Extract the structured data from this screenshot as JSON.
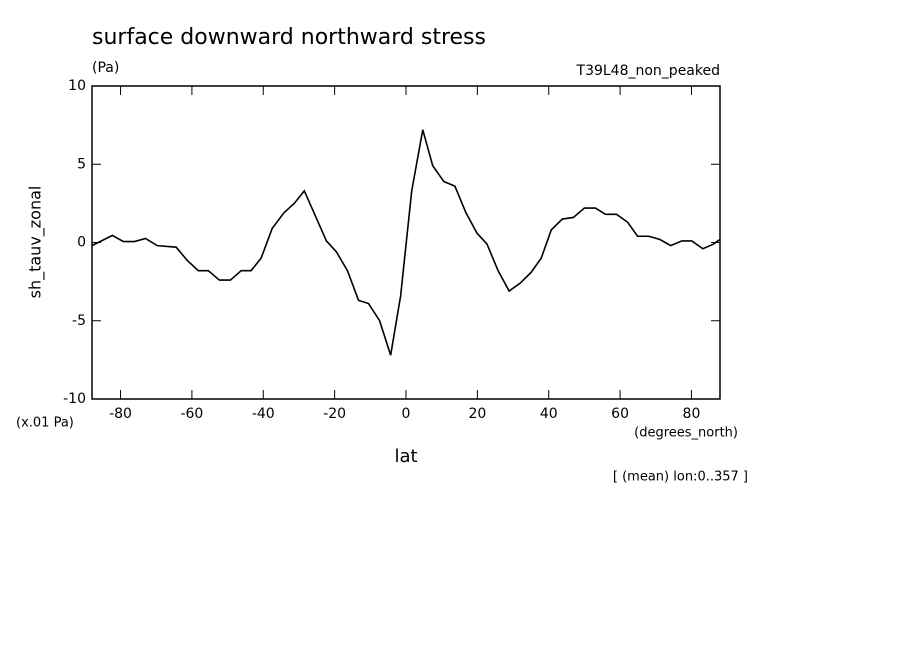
{
  "chart_data": {
    "type": "line",
    "title": "surface downward northward stress",
    "units": "(Pa)",
    "experiment": "T39L48_non_peaked",
    "y_label": "sh_tauv_zonal",
    "y_scale_note": "(x.01 Pa)",
    "x_units": "(degrees_north)",
    "x_label": "lat",
    "note": "[ (mean) lon:0..357 ]",
    "color": "#000000",
    "xlim": [
      -88,
      88
    ],
    "xticks": [
      -80,
      -60,
      -40,
      -20,
      0,
      20,
      40,
      60,
      80
    ],
    "ylim": [
      -10,
      10
    ],
    "yticks": [
      -10,
      -5,
      0,
      5,
      10
    ],
    "x": [
      -88,
      -82.3,
      -79.2,
      -76.1,
      -73,
      -69.7,
      -64.4,
      -61.3,
      -58.2,
      -55.4,
      -52.3,
      -49.2,
      -46.2,
      -43.4,
      -40.6,
      -37.5,
      -34.2,
      -31.3,
      -28.5,
      -25.4,
      -22.3,
      -19.5,
      -16.4,
      -13.3,
      -10.5,
      -7.4,
      -4.3,
      -1.5,
      1.6,
      4.7,
      7.5,
      10.6,
      13.7,
      16.8,
      19.9,
      22.7,
      25.8,
      28.9,
      32,
      35.1,
      37.9,
      40.7,
      43.8,
      46.9,
      50,
      53.1,
      55.9,
      59,
      62.1,
      64.9,
      68,
      71.1,
      74.2,
      77.3,
      80.1,
      83.2,
      86.2,
      88
    ],
    "values": [
      -0.2,
      0.45,
      0.06,
      0.06,
      0.26,
      -0.2,
      -0.3,
      -1.15,
      -1.8,
      -1.8,
      -2.4,
      -2.4,
      -1.8,
      -1.8,
      -1.0,
      0.9,
      1.9,
      2.5,
      3.3,
      1.7,
      0.1,
      -0.6,
      -1.8,
      -3.7,
      -3.9,
      -5.0,
      -7.2,
      -3.4,
      3.3,
      7.2,
      4.9,
      3.9,
      3.6,
      1.9,
      0.6,
      -0.1,
      -1.8,
      -3.1,
      -2.6,
      -1.9,
      -1.0,
      0.8,
      1.5,
      1.6,
      2.2,
      2.2,
      1.8,
      1.8,
      1.3,
      0.4,
      0.4,
      0.2,
      -0.2,
      0.1,
      0.1,
      -0.4,
      -0.1,
      0.2
    ]
  }
}
